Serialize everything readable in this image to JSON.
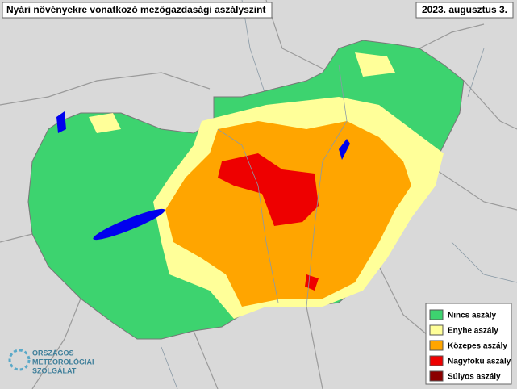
{
  "header": {
    "title": "Nyári növényekre vonatkozó mezőgazdasági aszályszint",
    "date": "2023. augusztus 3."
  },
  "legend": {
    "items": [
      {
        "label": "Nincs aszály",
        "color": "#3dd36f"
      },
      {
        "label": "Enyhe aszály",
        "color": "#ffff99"
      },
      {
        "label": "Közepes aszály",
        "color": "#ffa500"
      },
      {
        "label": "Nagyfokú aszály",
        "color": "#ee0000"
      },
      {
        "label": "Súlyos aszály",
        "color": "#8b0000"
      }
    ]
  },
  "logo": {
    "lines": [
      "ORSZÁGOS",
      "METEOROLÓGIAI",
      "SZOLGÁLAT"
    ]
  }
}
